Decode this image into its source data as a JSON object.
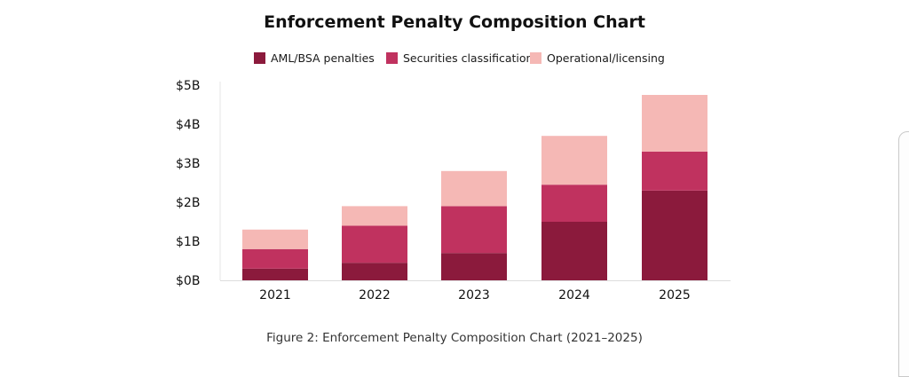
{
  "chart_data": {
    "type": "bar",
    "stacked": true,
    "title": "Enforcement Penalty Composition Chart",
    "caption": "Figure 2: Enforcement Penalty Composition Chart (2021–2025)",
    "categories": [
      "2021",
      "2022",
      "2023",
      "2024",
      "2025"
    ],
    "series": [
      {
        "name": "AML/BSA penalties",
        "color": "#8b1a3c",
        "values": [
          0.3,
          0.45,
          0.7,
          1.5,
          2.3
        ]
      },
      {
        "name": "Securities classification",
        "color": "#c0325f",
        "values": [
          0.5,
          0.95,
          1.2,
          0.95,
          1.0
        ]
      },
      {
        "name": "Operational/licensing",
        "color": "#f5b8b5",
        "values": [
          0.5,
          0.5,
          0.9,
          1.25,
          1.45
        ]
      }
    ],
    "ylim": [
      0,
      5
    ],
    "yticks": [
      {
        "value": 0,
        "label": "$0B"
      },
      {
        "value": 1,
        "label": "$1B"
      },
      {
        "value": 2,
        "label": "$2B"
      },
      {
        "value": 3,
        "label": "$3B"
      },
      {
        "value": 4,
        "label": "$4B"
      },
      {
        "value": 5,
        "label": "$5B"
      }
    ],
    "legend_position": "top",
    "grid": false
  }
}
